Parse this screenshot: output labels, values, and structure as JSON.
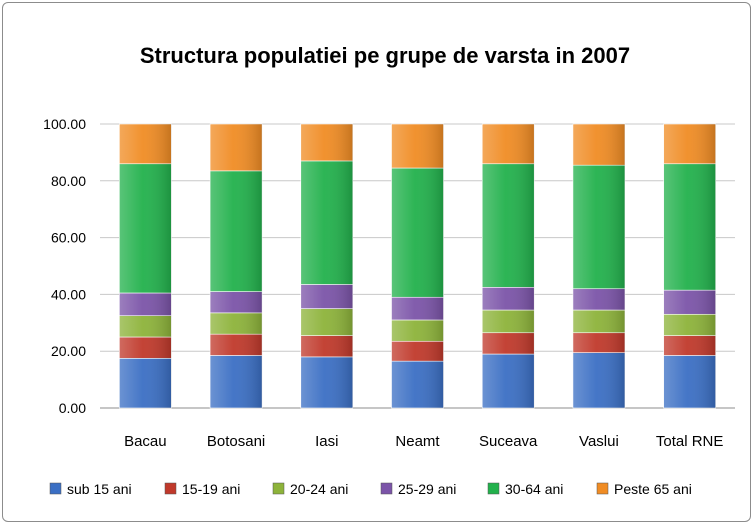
{
  "chart_data": {
    "type": "bar",
    "stacked": true,
    "title": "Structura populatiei pe grupe de varsta in 2007",
    "xlabel": "",
    "ylabel": "",
    "ylim": [
      0,
      100
    ],
    "yticks": [
      "0.00",
      "20.00",
      "40.00",
      "60.00",
      "80.00",
      "100.00"
    ],
    "grid": true,
    "legend_position": "bottom",
    "categories": [
      "Bacau",
      "Botosani",
      "Iasi",
      "Neamt",
      "Suceava",
      "Vaslui",
      "Total RNE"
    ],
    "series": [
      {
        "name": "sub 15 ani",
        "color": "#3b6fc4",
        "values": [
          17.5,
          18.5,
          18.0,
          16.5,
          19.0,
          19.5,
          18.5
        ]
      },
      {
        "name": "15-19 ani",
        "color": "#c0392b",
        "values": [
          7.5,
          7.5,
          7.5,
          7.0,
          7.5,
          7.0,
          7.0
        ]
      },
      {
        "name": "20-24 ani",
        "color": "#8db33a",
        "values": [
          7.5,
          7.5,
          9.5,
          7.5,
          8.0,
          8.0,
          7.5
        ]
      },
      {
        "name": "25-29 ani",
        "color": "#7b54a8",
        "values": [
          8.0,
          7.5,
          8.5,
          8.0,
          8.0,
          7.5,
          8.5
        ]
      },
      {
        "name": "30-64 ani",
        "color": "#22b14c",
        "values": [
          45.5,
          42.5,
          43.5,
          45.5,
          43.5,
          43.5,
          44.5
        ]
      },
      {
        "name": "Peste 65 ani",
        "color": "#f08c24",
        "values": [
          14.0,
          16.5,
          13.0,
          15.5,
          14.0,
          14.5,
          14.0
        ]
      }
    ]
  }
}
